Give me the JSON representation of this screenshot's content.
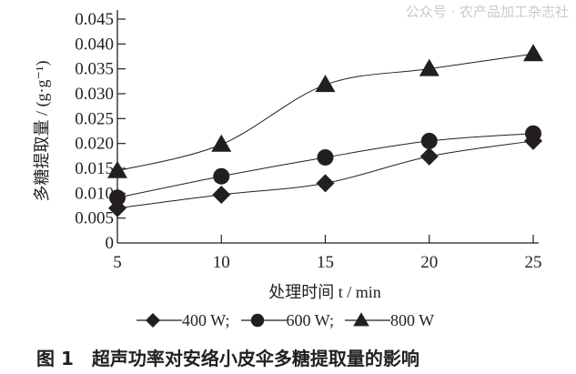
{
  "chart_data": {
    "type": "line",
    "title": "",
    "xlabel": "处理时间 t / min",
    "ylabel": "多糖提取量 / (g·g⁻¹)",
    "x": [
      5,
      10,
      15,
      20,
      25
    ],
    "xlim": [
      5,
      25
    ],
    "ylim": [
      0,
      0.045
    ],
    "xticks": [
      "5",
      "10",
      "15",
      "20",
      "25"
    ],
    "yticks": [
      "0",
      "0.005",
      "0.010",
      "0.015",
      "0.020",
      "0.025",
      "0.030",
      "0.035",
      "0.040",
      "0.045"
    ],
    "grid": false,
    "legend_position": "bottom",
    "series": [
      {
        "name": "400 W",
        "marker": "diamond",
        "values": [
          0.007,
          0.0097,
          0.012,
          0.0174,
          0.0205
        ]
      },
      {
        "name": "600 W",
        "marker": "circle",
        "values": [
          0.0091,
          0.0134,
          0.0172,
          0.0205,
          0.022
        ]
      },
      {
        "name": "800 W",
        "marker": "triangle",
        "values": [
          0.0145,
          0.0198,
          0.0318,
          0.035,
          0.038
        ]
      }
    ],
    "color": "#231f20"
  },
  "legend": {
    "sep": ";"
  },
  "caption": "图 1　超声功率对安络小皮伞多糖提取量的影响",
  "watermark": "公众号 · 农产品加工杂志社"
}
